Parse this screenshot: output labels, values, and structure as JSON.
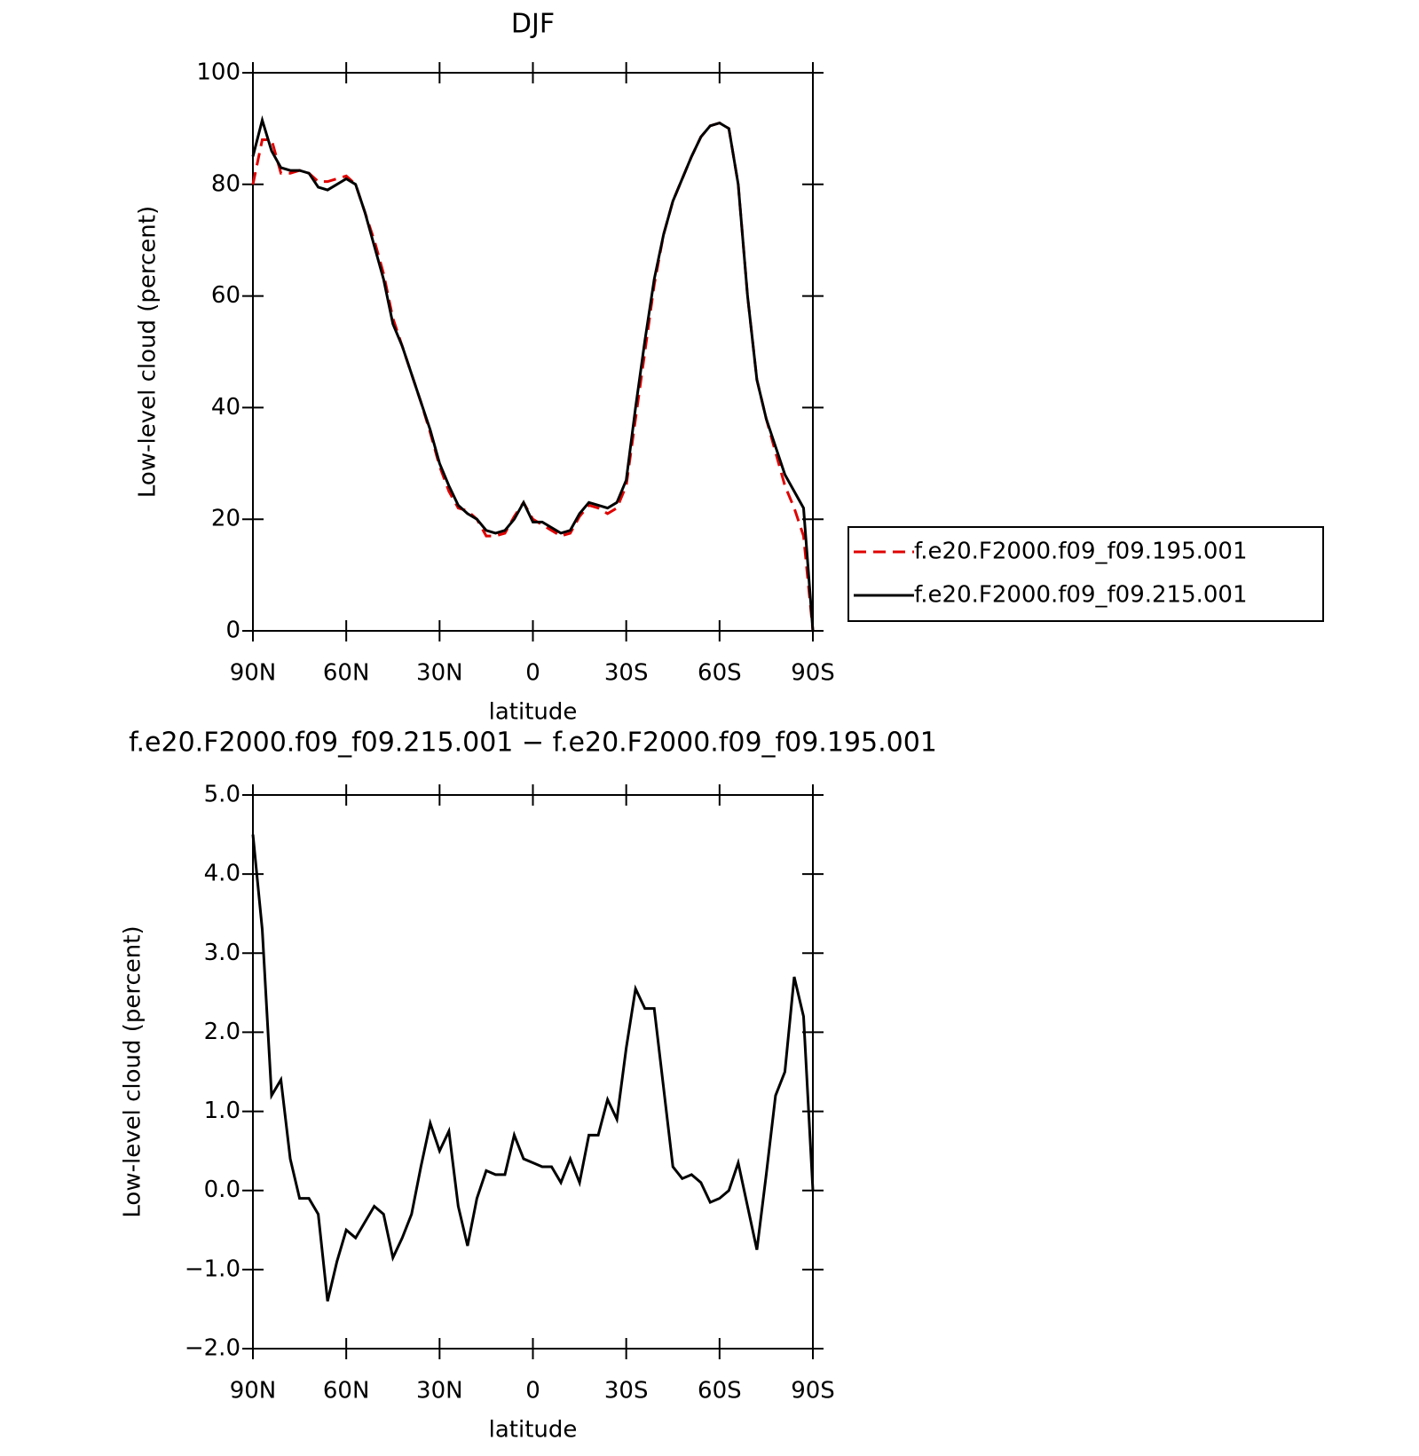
{
  "chart_data": [
    {
      "type": "line",
      "title": "DJF",
      "ylabel": "Low-level cloud (percent)",
      "xlabel": "latitude",
      "x": [
        90,
        87,
        84,
        81,
        78,
        75,
        72,
        69,
        66,
        63,
        60,
        57,
        54,
        51,
        48,
        45,
        42,
        39,
        36,
        33,
        30,
        27,
        24,
        21,
        18,
        15,
        12,
        9,
        6,
        3,
        0,
        -3,
        -6,
        -9,
        -12,
        -15,
        -18,
        -21,
        -24,
        -27,
        -30,
        -33,
        -36,
        -39,
        -42,
        -45,
        -48,
        -51,
        -54,
        -57,
        -60,
        -63,
        -66,
        -69,
        -72,
        -75,
        -78,
        -81,
        -84,
        -87,
        -90
      ],
      "series": [
        {
          "name": "f.e20.F2000.f09_f09.195.001",
          "color": "#e00000",
          "style": "dashed",
          "values": [
            80,
            88,
            88,
            82,
            82,
            82.5,
            82,
            80.5,
            80.5,
            81,
            81.5,
            80,
            75,
            70,
            64,
            56,
            51,
            46,
            41,
            35.5,
            29.5,
            25,
            22,
            21.5,
            20,
            17,
            17,
            17.5,
            20.5,
            23,
            20,
            19,
            18,
            17,
            17.5,
            20.5,
            22.5,
            22,
            21,
            22,
            26,
            38,
            50,
            62,
            71,
            77,
            81,
            85,
            88.5,
            90.5,
            91,
            90,
            80,
            60,
            45,
            38,
            32,
            26,
            22,
            17,
            0
          ]
        },
        {
          "name": "f.e20.F2000.f09_f09.215.001",
          "color": "#000000",
          "style": "solid",
          "values": [
            85,
            91.5,
            86,
            83,
            82.5,
            82.5,
            82,
            79.5,
            79,
            80,
            81,
            80,
            75,
            69,
            63,
            55,
            51,
            46,
            41,
            36,
            30,
            26,
            22.5,
            21,
            20,
            18,
            17.5,
            18,
            20,
            23,
            19.5,
            19.5,
            18.5,
            17.5,
            18,
            21,
            23,
            22.5,
            22,
            23,
            27,
            40,
            52,
            63,
            71,
            77,
            81,
            85,
            88.5,
            90.5,
            91,
            90,
            80,
            60,
            45,
            38,
            33,
            28,
            25,
            22,
            0
          ]
        }
      ],
      "xlim": [
        90,
        -90
      ],
      "xticks": [
        {
          "value": 90,
          "label": "90N"
        },
        {
          "value": 60,
          "label": "60N"
        },
        {
          "value": 30,
          "label": "30N"
        },
        0,
        {
          "value": -30,
          "label": "30S"
        },
        {
          "value": -60,
          "label": "60S"
        },
        {
          "value": -90,
          "label": "90S"
        }
      ],
      "ylim": [
        0,
        100
      ],
      "yticks": [
        0,
        20,
        40,
        60,
        80,
        100
      ],
      "legend": "right"
    },
    {
      "type": "line",
      "title": "f.e20.F2000.f09_f09.215.001 − f.e20.F2000.f09_f09.195.001",
      "ylabel": "Low-level cloud (percent)",
      "xlabel": "latitude",
      "x": [
        90,
        87,
        84,
        81,
        78,
        75,
        72,
        69,
        66,
        63,
        60,
        57,
        54,
        51,
        48,
        45,
        42,
        39,
        36,
        33,
        30,
        27,
        24,
        21,
        18,
        15,
        12,
        9,
        6,
        3,
        0,
        -3,
        -6,
        -9,
        -12,
        -15,
        -18,
        -21,
        -24,
        -27,
        -30,
        -33,
        -36,
        -39,
        -42,
        -45,
        -48,
        -51,
        -54,
        -57,
        -60,
        -63,
        -66,
        -69,
        -72,
        -75,
        -78,
        -81,
        -84,
        -87,
        -90
      ],
      "values": [
        4.5,
        3.3,
        1.2,
        1.4,
        0.4,
        -0.1,
        -0.1,
        -0.3,
        -1.4,
        -0.9,
        -0.5,
        -0.6,
        -0.4,
        -0.2,
        -0.3,
        -0.85,
        -0.6,
        -0.3,
        0.3,
        0.85,
        0.5,
        0.75,
        -0.2,
        -0.7,
        -0.1,
        0.25,
        0.2,
        0.2,
        0.7,
        0.4,
        0.35,
        0.3,
        0.3,
        0.1,
        0.4,
        0.1,
        0.7,
        0.7,
        1.15,
        0.9,
        1.8,
        2.55,
        2.3,
        2.3,
        1.3,
        0.3,
        0.15,
        0.2,
        0.1,
        -0.15,
        -0.1,
        0,
        0.35,
        -0.2,
        -0.75,
        0.2,
        1.2,
        1.5,
        2.7,
        2.2,
        0
      ],
      "color": "#000000",
      "xlim": [
        90,
        -90
      ],
      "xticks": [
        {
          "value": 90,
          "label": "90N"
        },
        {
          "value": 60,
          "label": "60N"
        },
        {
          "value": 30,
          "label": "30N"
        },
        0,
        {
          "value": -30,
          "label": "30S"
        },
        {
          "value": -60,
          "label": "60S"
        },
        {
          "value": -90,
          "label": "90S"
        }
      ],
      "ylim": [
        -2,
        5
      ],
      "yticks": [
        {
          "value": -2,
          "label": "−2.0"
        },
        {
          "value": -1,
          "label": "−1.0"
        },
        {
          "value": 0,
          "label": "0.0"
        },
        {
          "value": 1,
          "label": "1.0"
        },
        {
          "value": 2,
          "label": "2.0"
        },
        {
          "value": 3,
          "label": "3.0"
        },
        {
          "value": 4,
          "label": "4.0"
        },
        {
          "value": 5,
          "label": "5.0"
        }
      ]
    }
  ]
}
